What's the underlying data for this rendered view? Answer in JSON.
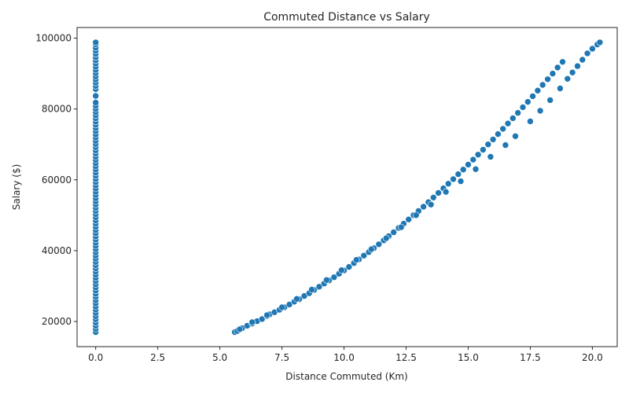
{
  "chart_data": {
    "type": "scatter",
    "title": "Commuted Distance vs Salary",
    "xlabel": "Distance Commuted (Km)",
    "ylabel": "Salary ($)",
    "xlim": [
      -0.75,
      21.0
    ],
    "ylim": [
      12900,
      103000
    ],
    "x_ticks": [
      0.0,
      2.5,
      5.0,
      7.5,
      10.0,
      12.5,
      15.0,
      17.5,
      20.0
    ],
    "x_tick_labels": [
      "0.0",
      "2.5",
      "5.0",
      "7.5",
      "10.0",
      "12.5",
      "15.0",
      "17.5",
      "20.0"
    ],
    "y_ticks": [
      20000,
      40000,
      60000,
      80000,
      100000
    ],
    "y_tick_labels": [
      "20000",
      "40000",
      "60000",
      "80000",
      "100000"
    ],
    "grid": false,
    "color": "#1f77b4",
    "series": [
      {
        "points": [
          [
            0,
            17000
          ],
          [
            0,
            17900
          ],
          [
            0,
            18800
          ],
          [
            0,
            19700
          ],
          [
            0,
            20600
          ],
          [
            0,
            21500
          ],
          [
            0,
            22400
          ],
          [
            0,
            23300
          ],
          [
            0,
            24200
          ],
          [
            0,
            25100
          ],
          [
            0,
            26000
          ],
          [
            0,
            26900
          ],
          [
            0,
            27800
          ],
          [
            0,
            28700
          ],
          [
            0,
            29600
          ],
          [
            0,
            30500
          ],
          [
            0,
            31400
          ],
          [
            0,
            32300
          ],
          [
            0,
            33200
          ],
          [
            0,
            34100
          ],
          [
            0,
            35000
          ],
          [
            0,
            35900
          ],
          [
            0,
            36800
          ],
          [
            0,
            37700
          ],
          [
            0,
            38600
          ],
          [
            0,
            39500
          ],
          [
            0,
            40400
          ],
          [
            0,
            41300
          ],
          [
            0,
            42200
          ],
          [
            0,
            43100
          ],
          [
            0,
            44000
          ],
          [
            0,
            44900
          ],
          [
            0,
            45800
          ],
          [
            0,
            46700
          ],
          [
            0,
            47600
          ],
          [
            0,
            48500
          ],
          [
            0,
            49400
          ],
          [
            0,
            50300
          ],
          [
            0,
            51200
          ],
          [
            0,
            52100
          ],
          [
            0,
            53000
          ],
          [
            0,
            53900
          ],
          [
            0,
            54800
          ],
          [
            0,
            55700
          ],
          [
            0,
            56600
          ],
          [
            0,
            57500
          ],
          [
            0,
            58400
          ],
          [
            0,
            59300
          ],
          [
            0,
            60200
          ],
          [
            0,
            61100
          ],
          [
            0,
            62000
          ],
          [
            0,
            62900
          ],
          [
            0,
            63800
          ],
          [
            0,
            64700
          ],
          [
            0,
            65600
          ],
          [
            0,
            66500
          ],
          [
            0,
            67400
          ],
          [
            0,
            68300
          ],
          [
            0,
            69200
          ],
          [
            0,
            70100
          ],
          [
            0,
            71000
          ],
          [
            0,
            71900
          ],
          [
            0,
            72800
          ],
          [
            0,
            73700
          ],
          [
            0,
            74600
          ],
          [
            0,
            75500
          ],
          [
            0,
            76400
          ],
          [
            0,
            77300
          ],
          [
            0,
            78200
          ],
          [
            0,
            79100
          ],
          [
            0,
            80000
          ],
          [
            0,
            80900
          ],
          [
            0,
            81800
          ],
          [
            0,
            83700
          ],
          [
            0,
            85600
          ],
          [
            0,
            86500
          ],
          [
            0,
            87400
          ],
          [
            0,
            88300
          ],
          [
            0,
            89200
          ],
          [
            0,
            90100
          ],
          [
            0,
            91000
          ],
          [
            0,
            91900
          ],
          [
            0,
            92800
          ],
          [
            0,
            93700
          ],
          [
            0,
            94600
          ],
          [
            0,
            95500
          ],
          [
            0,
            96400
          ],
          [
            0,
            97300
          ],
          [
            0,
            98200
          ],
          [
            0,
            98800
          ],
          [
            5.6,
            17000
          ],
          [
            5.7,
            17300
          ],
          [
            5.9,
            18100
          ],
          [
            6.1,
            18800
          ],
          [
            6.3,
            19400
          ],
          [
            6.5,
            20100
          ],
          [
            6.7,
            20700
          ],
          [
            6.9,
            21500
          ],
          [
            7.0,
            22000
          ],
          [
            7.2,
            22600
          ],
          [
            7.4,
            23300
          ],
          [
            7.6,
            24000
          ],
          [
            7.8,
            24800
          ],
          [
            8.0,
            25600
          ],
          [
            8.2,
            26300
          ],
          [
            8.4,
            27200
          ],
          [
            8.6,
            28000
          ],
          [
            8.8,
            28900
          ],
          [
            9.0,
            29800
          ],
          [
            9.2,
            30700
          ],
          [
            9.4,
            31600
          ],
          [
            9.6,
            32500
          ],
          [
            9.8,
            33500
          ],
          [
            10.0,
            34400
          ],
          [
            10.2,
            35400
          ],
          [
            10.4,
            36500
          ],
          [
            10.6,
            37500
          ],
          [
            10.8,
            38600
          ],
          [
            11.0,
            39600
          ],
          [
            11.2,
            40700
          ],
          [
            11.4,
            41800
          ],
          [
            11.6,
            42900
          ],
          [
            11.8,
            44100
          ],
          [
            12.0,
            45200
          ],
          [
            12.2,
            46400
          ],
          [
            12.4,
            47600
          ],
          [
            12.6,
            48800
          ],
          [
            12.8,
            50000
          ],
          [
            13.0,
            51200
          ],
          [
            13.2,
            52400
          ],
          [
            13.4,
            53700
          ],
          [
            13.6,
            55000
          ],
          [
            13.8,
            56300
          ],
          [
            14.0,
            57600
          ],
          [
            14.2,
            58900
          ],
          [
            14.4,
            60200
          ],
          [
            14.6,
            61600
          ],
          [
            14.8,
            62900
          ],
          [
            15.0,
            64300
          ],
          [
            15.2,
            65700
          ],
          [
            15.4,
            67100
          ],
          [
            15.6,
            68500
          ],
          [
            15.8,
            70000
          ],
          [
            16.0,
            71400
          ],
          [
            16.2,
            72900
          ],
          [
            16.4,
            74400
          ],
          [
            16.6,
            75900
          ],
          [
            16.8,
            77400
          ],
          [
            17.0,
            78900
          ],
          [
            17.2,
            80500
          ],
          [
            17.4,
            82000
          ],
          [
            17.6,
            83600
          ],
          [
            17.8,
            85200
          ],
          [
            18.0,
            86800
          ],
          [
            18.2,
            88400
          ],
          [
            18.4,
            90000
          ],
          [
            18.6,
            91700
          ],
          [
            18.8,
            93300
          ],
          [
            19.0,
            88500
          ],
          [
            19.2,
            90300
          ],
          [
            19.4,
            92100
          ],
          [
            19.6,
            93900
          ],
          [
            19.8,
            95700
          ],
          [
            20.0,
            97000
          ],
          [
            20.2,
            98200
          ],
          [
            20.3,
            98800
          ],
          [
            17.5,
            76500
          ],
          [
            17.9,
            79500
          ],
          [
            18.3,
            82500
          ],
          [
            18.7,
            85800
          ],
          [
            16.9,
            72300
          ],
          [
            16.5,
            69800
          ],
          [
            15.9,
            66500
          ],
          [
            15.3,
            63000
          ],
          [
            14.7,
            59600
          ],
          [
            14.1,
            56600
          ],
          [
            13.5,
            53000
          ],
          [
            12.9,
            50000
          ],
          [
            12.3,
            46600
          ],
          [
            11.7,
            43500
          ],
          [
            11.1,
            40400
          ],
          [
            10.5,
            37400
          ],
          [
            9.9,
            34500
          ],
          [
            9.3,
            31700
          ],
          [
            8.7,
            29000
          ],
          [
            8.1,
            26400
          ],
          [
            7.5,
            24000
          ],
          [
            6.9,
            21800
          ],
          [
            6.3,
            19800
          ],
          [
            5.8,
            17800
          ]
        ]
      }
    ]
  }
}
